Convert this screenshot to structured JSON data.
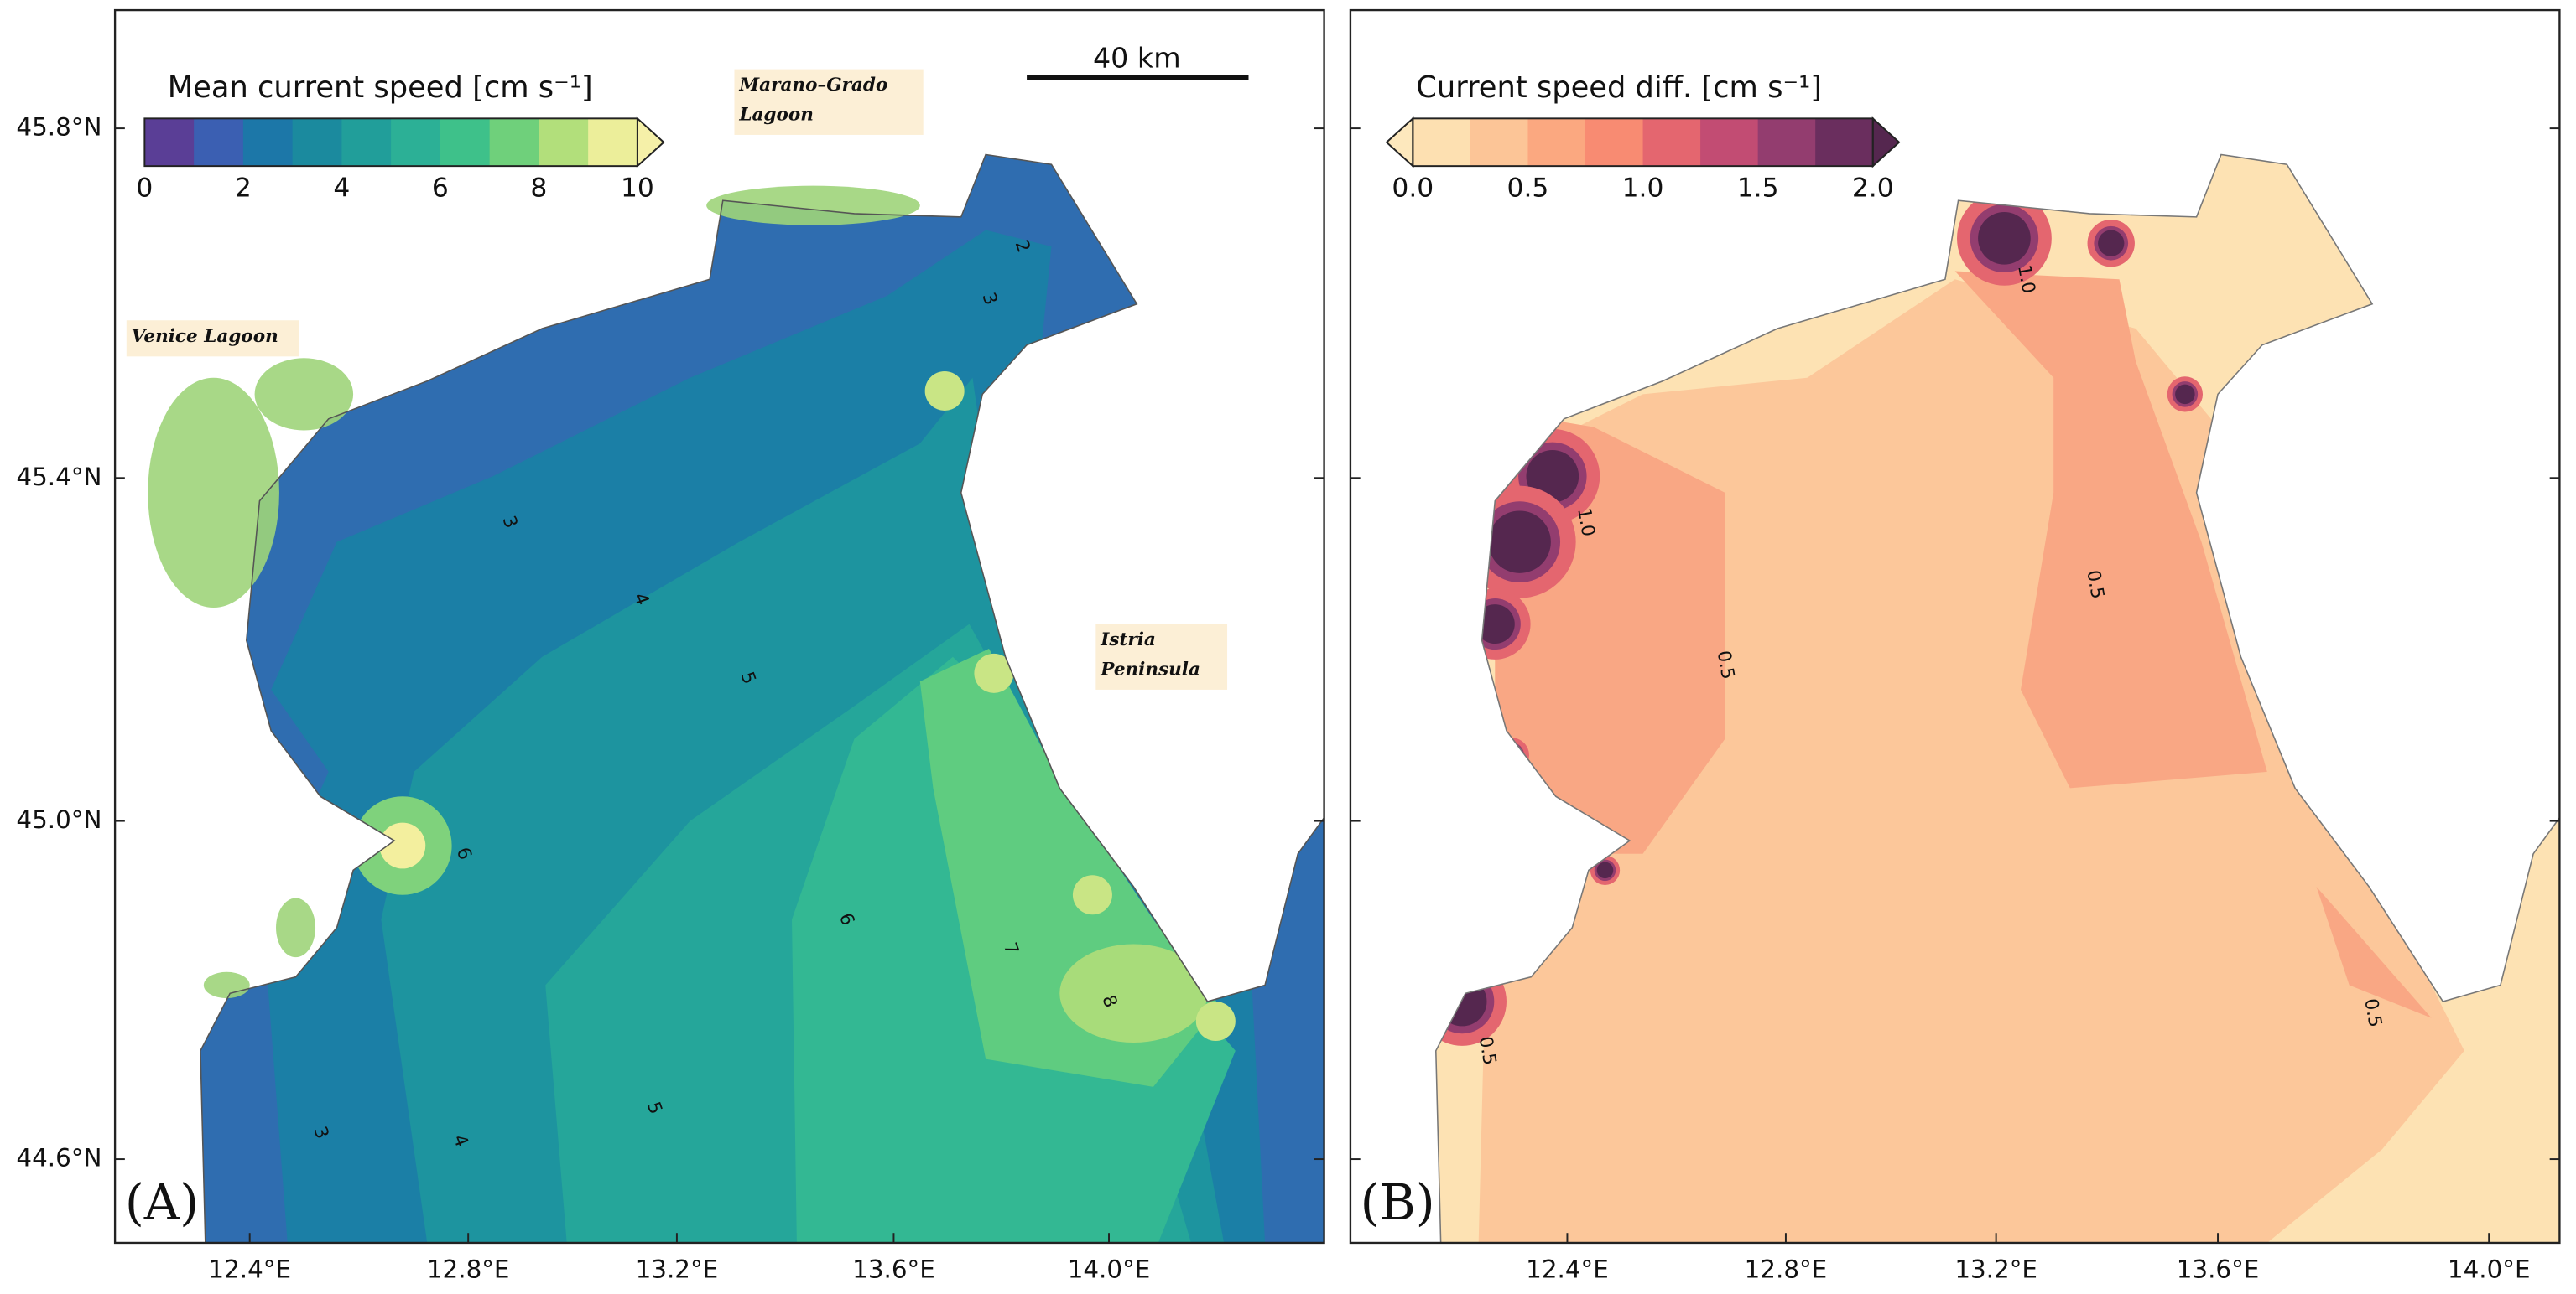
{
  "axes": {
    "lat_ticks": [
      "45.8°N",
      "45.4°N",
      "45.0°N",
      "44.6°N"
    ],
    "lon_ticks": [
      "12.4°E",
      "12.8°E",
      "13.2°E",
      "13.6°E",
      "14.0°E"
    ]
  },
  "panels": [
    {
      "label": "(A)",
      "colorbar": {
        "title": "Mean current speed [cm s⁻¹]",
        "ticks": [
          "0",
          "2",
          "4",
          "6",
          "8",
          "10"
        ],
        "colors": [
          "#5a3e96",
          "#3b5fb2",
          "#1c77a8",
          "#1b8a9e",
          "#219e9a",
          "#2cb096",
          "#3ec18a",
          "#6fd07b",
          "#b2df7b",
          "#ecee9a"
        ],
        "extend_high": "#f5f0a8"
      },
      "places": [
        {
          "lines": [
            "Marano–Grado",
            "Lagoon"
          ]
        },
        {
          "lines": [
            "Venice Lagoon"
          ]
        },
        {
          "lines": [
            "Istria",
            "Peninsula"
          ]
        }
      ],
      "scale_bar": "40 km",
      "contour_labels": [
        "2",
        "3",
        "3",
        "4",
        "5",
        "6",
        "6",
        "7",
        "8",
        "5",
        "4",
        "3"
      ]
    },
    {
      "label": "(B)",
      "colorbar": {
        "title": "Current speed diff. [cm s⁻¹]",
        "ticks": [
          "0.0",
          "0.5",
          "1.0",
          "1.5",
          "2.0"
        ],
        "colors": [
          "#fde0b1",
          "#fcc597",
          "#fba880",
          "#f88b72",
          "#e4666f",
          "#c24c73",
          "#933d6f",
          "#6a2e5e"
        ],
        "extend_low": "#fde8bd",
        "extend_high": "#55274f"
      },
      "contour_labels": [
        "1.0",
        "1.0",
        "0.5",
        "0.5",
        "0.5",
        "0.5"
      ]
    }
  ]
}
